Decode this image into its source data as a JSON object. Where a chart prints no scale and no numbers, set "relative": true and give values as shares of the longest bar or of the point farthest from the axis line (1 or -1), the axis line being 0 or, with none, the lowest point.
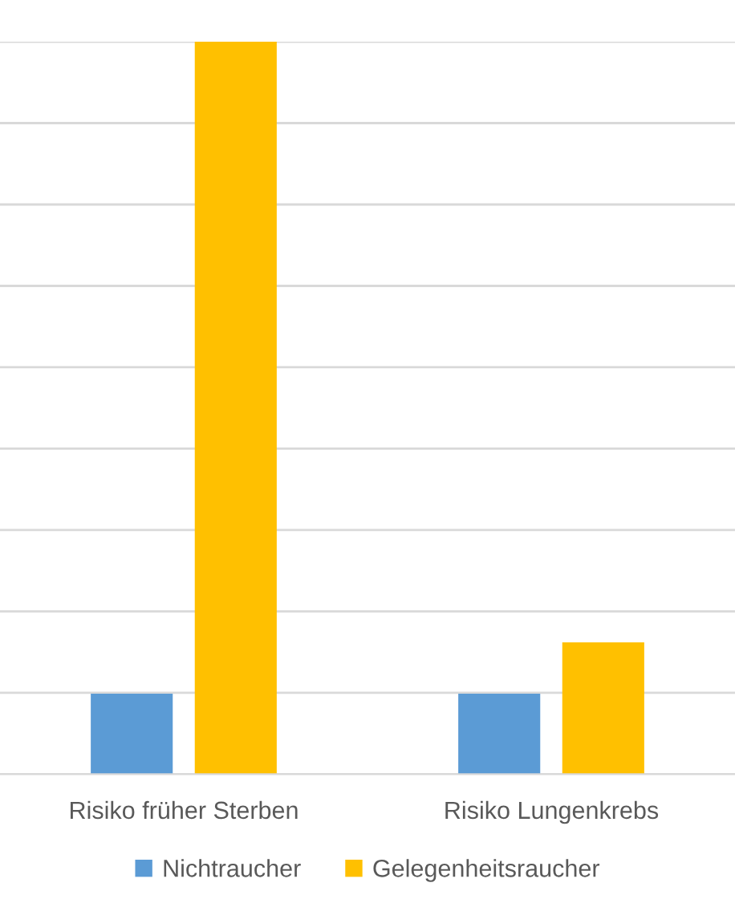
{
  "chart_data": {
    "type": "bar",
    "relative": true,
    "categories": [
      "Risiko früher Sterben",
      "Risiko Lungenkrebs"
    ],
    "series": [
      {
        "name": "Nichtraucher",
        "color": "#5b9bd5",
        "values": [
          0.11,
          0.11
        ]
      },
      {
        "name": "Gelegenheitsraucher",
        "color": "#ffc000",
        "values": [
          1,
          0.18
        ]
      }
    ],
    "grid": "y",
    "legend": "bottom"
  }
}
